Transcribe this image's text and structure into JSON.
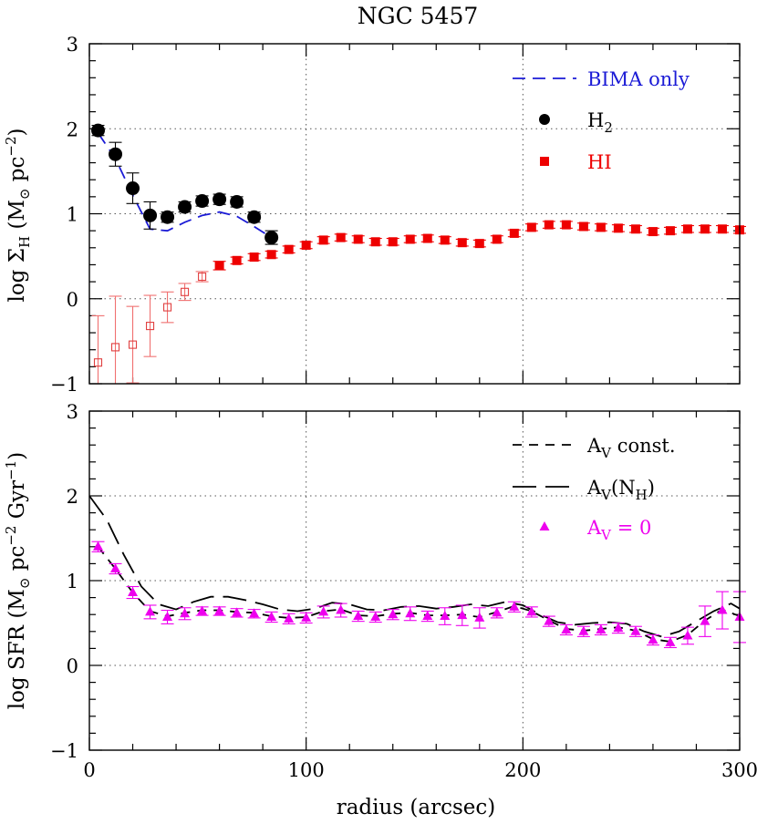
{
  "title": "NGC 5457",
  "colors": {
    "bima": "#1b1bd6",
    "h2": "#000000",
    "hi": "#ee0000",
    "sfr": "#ee00ee",
    "frame": "#000000"
  },
  "chart_data": [
    {
      "type": "scatter",
      "panel": "top",
      "ylabel": "log Σ_H (M⊙ pc⁻²)",
      "ylabel_parts": {
        "a": "log Σ",
        "b": "H",
        "c": " (M",
        "d": "⊙",
        "e": " pc",
        "f": "−2",
        "g": ")"
      },
      "xlim": [
        0,
        300
      ],
      "ylim": [
        -1,
        3
      ],
      "y_ticks": [
        "−1",
        "0",
        "1",
        "2",
        "3"
      ],
      "grid": "dotted at x = 100, 200 and y = 0, 1, 2",
      "legend": {
        "placement": "top-right",
        "entries": [
          {
            "label": "BIMA only",
            "style": "dashed line",
            "color": "#1b1bd6"
          },
          {
            "label": "H₂",
            "label_main": "H",
            "label_sub": "2",
            "style": "filled circle",
            "color": "#000000"
          },
          {
            "label": "HI",
            "style": "filled square",
            "color": "#ee0000"
          }
        ]
      },
      "series": [
        {
          "name": "H₂",
          "marker": "circle",
          "points": [
            {
              "x": 4,
              "y": 1.98,
              "err": 0.06
            },
            {
              "x": 12,
              "y": 1.7,
              "err": 0.14
            },
            {
              "x": 20,
              "y": 1.3,
              "err": 0.18
            },
            {
              "x": 28,
              "y": 0.98,
              "err": 0.16
            },
            {
              "x": 36,
              "y": 0.96,
              "err": 0.06
            },
            {
              "x": 44,
              "y": 1.08,
              "err": 0.06
            },
            {
              "x": 52,
              "y": 1.15,
              "err": 0.06
            },
            {
              "x": 60,
              "y": 1.17,
              "err": 0.06
            },
            {
              "x": 68,
              "y": 1.14,
              "err": 0.06
            },
            {
              "x": 76,
              "y": 0.96,
              "err": 0.06
            },
            {
              "x": 84,
              "y": 0.72,
              "err": 0.08
            }
          ]
        },
        {
          "name": "BIMA only",
          "line": "dashed",
          "x": [
            4,
            12,
            20,
            28,
            36,
            44,
            52,
            60,
            68,
            76,
            84
          ],
          "y": [
            1.95,
            1.65,
            1.22,
            0.82,
            0.8,
            0.9,
            0.98,
            1.02,
            0.97,
            0.85,
            0.72
          ]
        },
        {
          "name": "HI (open, uncertain)",
          "marker": "open square",
          "points": [
            {
              "x": 4,
              "y": -0.75,
              "err": 0.55
            },
            {
              "x": 12,
              "y": -0.57,
              "err": 0.6
            },
            {
              "x": 20,
              "y": -0.54,
              "err": 0.45
            },
            {
              "x": 28,
              "y": -0.32,
              "err": 0.36
            },
            {
              "x": 36,
              "y": -0.1,
              "err": 0.18
            },
            {
              "x": 44,
              "y": 0.08,
              "err": 0.1
            },
            {
              "x": 52,
              "y": 0.26,
              "err": 0.06
            }
          ]
        },
        {
          "name": "HI",
          "marker": "filled square",
          "points": [
            {
              "x": 60,
              "y": 0.39,
              "err": 0.05
            },
            {
              "x": 68,
              "y": 0.45,
              "err": 0.04
            },
            {
              "x": 76,
              "y": 0.49,
              "err": 0.04
            },
            {
              "x": 84,
              "y": 0.52,
              "err": 0.04
            },
            {
              "x": 92,
              "y": 0.58,
              "err": 0.04
            },
            {
              "x": 100,
              "y": 0.63,
              "err": 0.04
            },
            {
              "x": 108,
              "y": 0.69,
              "err": 0.04
            },
            {
              "x": 116,
              "y": 0.72,
              "err": 0.04
            },
            {
              "x": 124,
              "y": 0.7,
              "err": 0.04
            },
            {
              "x": 132,
              "y": 0.67,
              "err": 0.04
            },
            {
              "x": 140,
              "y": 0.67,
              "err": 0.04
            },
            {
              "x": 148,
              "y": 0.7,
              "err": 0.04
            },
            {
              "x": 156,
              "y": 0.71,
              "err": 0.04
            },
            {
              "x": 164,
              "y": 0.69,
              "err": 0.04
            },
            {
              "x": 172,
              "y": 0.66,
              "err": 0.04
            },
            {
              "x": 180,
              "y": 0.65,
              "err": 0.04
            },
            {
              "x": 188,
              "y": 0.7,
              "err": 0.04
            },
            {
              "x": 196,
              "y": 0.77,
              "err": 0.04
            },
            {
              "x": 204,
              "y": 0.84,
              "err": 0.04
            },
            {
              "x": 212,
              "y": 0.87,
              "err": 0.04
            },
            {
              "x": 220,
              "y": 0.87,
              "err": 0.04
            },
            {
              "x": 228,
              "y": 0.85,
              "err": 0.04
            },
            {
              "x": 236,
              "y": 0.84,
              "err": 0.04
            },
            {
              "x": 244,
              "y": 0.83,
              "err": 0.04
            },
            {
              "x": 252,
              "y": 0.82,
              "err": 0.04
            },
            {
              "x": 260,
              "y": 0.79,
              "err": 0.04
            },
            {
              "x": 268,
              "y": 0.8,
              "err": 0.04
            },
            {
              "x": 276,
              "y": 0.82,
              "err": 0.04
            },
            {
              "x": 284,
              "y": 0.82,
              "err": 0.04
            },
            {
              "x": 292,
              "y": 0.82,
              "err": 0.04
            },
            {
              "x": 300,
              "y": 0.81,
              "err": 0.04
            }
          ]
        }
      ]
    },
    {
      "type": "scatter",
      "panel": "bottom",
      "xlabel": "radius (arcsec)",
      "ylabel": "log SFR (M⊙ pc⁻² Gyr⁻¹)",
      "ylabel_parts": {
        "a": "log SFR (M",
        "b": "⊙",
        "c": " pc",
        "d": "−2",
        "e": " Gyr",
        "f": "−1",
        "g": ")"
      },
      "xlim": [
        0,
        300
      ],
      "ylim": [
        -1,
        3
      ],
      "x_ticks": [
        "0",
        "100",
        "200",
        "300"
      ],
      "y_ticks": [
        "−1",
        "0",
        "1",
        "2",
        "3"
      ],
      "grid": "dotted at x = 100, 200 and y = 0, 1, 2",
      "legend": {
        "placement": "top-right",
        "entries": [
          {
            "label": "A_V const.",
            "label_main": "A",
            "label_sub": "V",
            "label_rest": " const.",
            "style": "short-dashed line",
            "color": "#000000"
          },
          {
            "label": "A_V(N_H)",
            "label_main": "A",
            "label_sub": "V",
            "label_rest": "(N",
            "label_sub2": "H",
            "label_end": ")",
            "style": "long-dashed line",
            "color": "#000000"
          },
          {
            "label": "A_V = 0",
            "label_main": "A",
            "label_sub": "V",
            "label_rest": " = 0",
            "style": "filled triangle",
            "color": "#ee00ee"
          }
        ]
      },
      "series": [
        {
          "name": "A_V = 0",
          "marker": "triangle",
          "points": [
            {
              "x": 4,
              "y": 1.4,
              "err": 0.06
            },
            {
              "x": 12,
              "y": 1.14,
              "err": 0.06
            },
            {
              "x": 20,
              "y": 0.86,
              "err": 0.07
            },
            {
              "x": 28,
              "y": 0.63,
              "err": 0.08
            },
            {
              "x": 36,
              "y": 0.57,
              "err": 0.08
            },
            {
              "x": 44,
              "y": 0.61,
              "err": 0.07
            },
            {
              "x": 52,
              "y": 0.64,
              "err": 0.05
            },
            {
              "x": 60,
              "y": 0.64,
              "err": 0.05
            },
            {
              "x": 68,
              "y": 0.62,
              "err": 0.05
            },
            {
              "x": 76,
              "y": 0.61,
              "err": 0.05
            },
            {
              "x": 84,
              "y": 0.57,
              "err": 0.06
            },
            {
              "x": 92,
              "y": 0.55,
              "err": 0.06
            },
            {
              "x": 100,
              "y": 0.56,
              "err": 0.06
            },
            {
              "x": 108,
              "y": 0.63,
              "err": 0.07
            },
            {
              "x": 116,
              "y": 0.65,
              "err": 0.08
            },
            {
              "x": 124,
              "y": 0.58,
              "err": 0.06
            },
            {
              "x": 132,
              "y": 0.57,
              "err": 0.06
            },
            {
              "x": 140,
              "y": 0.6,
              "err": 0.06
            },
            {
              "x": 148,
              "y": 0.61,
              "err": 0.08
            },
            {
              "x": 156,
              "y": 0.58,
              "err": 0.06
            },
            {
              "x": 164,
              "y": 0.58,
              "err": 0.1
            },
            {
              "x": 172,
              "y": 0.59,
              "err": 0.12
            },
            {
              "x": 180,
              "y": 0.56,
              "err": 0.12
            },
            {
              "x": 188,
              "y": 0.62,
              "err": 0.06
            },
            {
              "x": 196,
              "y": 0.69,
              "err": 0.06
            },
            {
              "x": 204,
              "y": 0.63,
              "err": 0.06
            },
            {
              "x": 212,
              "y": 0.52,
              "err": 0.06
            },
            {
              "x": 220,
              "y": 0.42,
              "err": 0.06
            },
            {
              "x": 228,
              "y": 0.4,
              "err": 0.06
            },
            {
              "x": 236,
              "y": 0.42,
              "err": 0.06
            },
            {
              "x": 244,
              "y": 0.44,
              "err": 0.06
            },
            {
              "x": 252,
              "y": 0.4,
              "err": 0.06
            },
            {
              "x": 260,
              "y": 0.3,
              "err": 0.06
            },
            {
              "x": 268,
              "y": 0.27,
              "err": 0.06
            },
            {
              "x": 276,
              "y": 0.35,
              "err": 0.1
            },
            {
              "x": 284,
              "y": 0.52,
              "err": 0.18
            },
            {
              "x": 292,
              "y": 0.65,
              "err": 0.22
            },
            {
              "x": 300,
              "y": 0.57,
              "err": 0.3
            }
          ]
        },
        {
          "name": "A_V const.",
          "line": "short-dashed",
          "x": [
            4,
            12,
            20,
            28,
            36,
            44,
            52,
            60,
            68,
            76,
            84,
            92,
            100,
            108,
            116,
            124,
            132,
            140,
            148,
            156,
            164,
            172,
            180,
            188,
            196,
            204,
            212,
            220,
            228,
            236,
            244,
            252,
            260,
            268,
            276,
            284,
            292,
            300
          ],
          "y": [
            1.4,
            1.14,
            0.86,
            0.64,
            0.58,
            0.62,
            0.65,
            0.65,
            0.63,
            0.62,
            0.58,
            0.56,
            0.57,
            0.64,
            0.66,
            0.59,
            0.58,
            0.61,
            0.62,
            0.59,
            0.59,
            0.6,
            0.57,
            0.63,
            0.7,
            0.64,
            0.53,
            0.43,
            0.41,
            0.43,
            0.45,
            0.41,
            0.31,
            0.28,
            0.36,
            0.53,
            0.66,
            0.58
          ]
        },
        {
          "name": "A_V(N_H)",
          "line": "long-dashed",
          "x": [
            0,
            8,
            16,
            24,
            32,
            40,
            48,
            56,
            64,
            72,
            80,
            88,
            96,
            104,
            112,
            120,
            128,
            136,
            144,
            152,
            160,
            168,
            176,
            184,
            192,
            200,
            208,
            216,
            224,
            232,
            240,
            248,
            256,
            264,
            272,
            280,
            288,
            296,
            300
          ],
          "y": [
            2.0,
            1.72,
            1.3,
            0.93,
            0.72,
            0.66,
            0.75,
            0.81,
            0.81,
            0.77,
            0.72,
            0.66,
            0.64,
            0.67,
            0.74,
            0.72,
            0.66,
            0.65,
            0.69,
            0.7,
            0.67,
            0.69,
            0.72,
            0.7,
            0.75,
            0.71,
            0.6,
            0.51,
            0.48,
            0.5,
            0.51,
            0.49,
            0.4,
            0.34,
            0.4,
            0.52,
            0.64,
            0.73,
            0.67
          ]
        }
      ]
    }
  ]
}
